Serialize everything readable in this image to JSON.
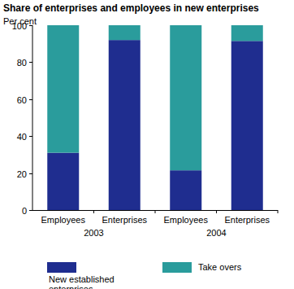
{
  "chart_data": {
    "type": "bar",
    "stacked": true,
    "title": "Share of enterprises and employees in new enterprises",
    "y_label": "Per cent",
    "categories": [
      "Employees",
      "Enterprises",
      "Employees",
      "Enterprises"
    ],
    "groups": [
      "2003",
      "2004"
    ],
    "series": [
      {
        "name": "New established enterprises",
        "color": "#1f2d8f",
        "values": [
          31,
          92,
          21.5,
          91.5
        ]
      },
      {
        "name": "Take overs",
        "color": "#2a9c9c",
        "values": [
          69,
          8,
          78.5,
          8.5
        ]
      }
    ],
    "ylim": [
      0,
      100
    ],
    "yticks": [
      0,
      20,
      40,
      60,
      80,
      100
    ],
    "grid": false,
    "legend": "bottom"
  }
}
